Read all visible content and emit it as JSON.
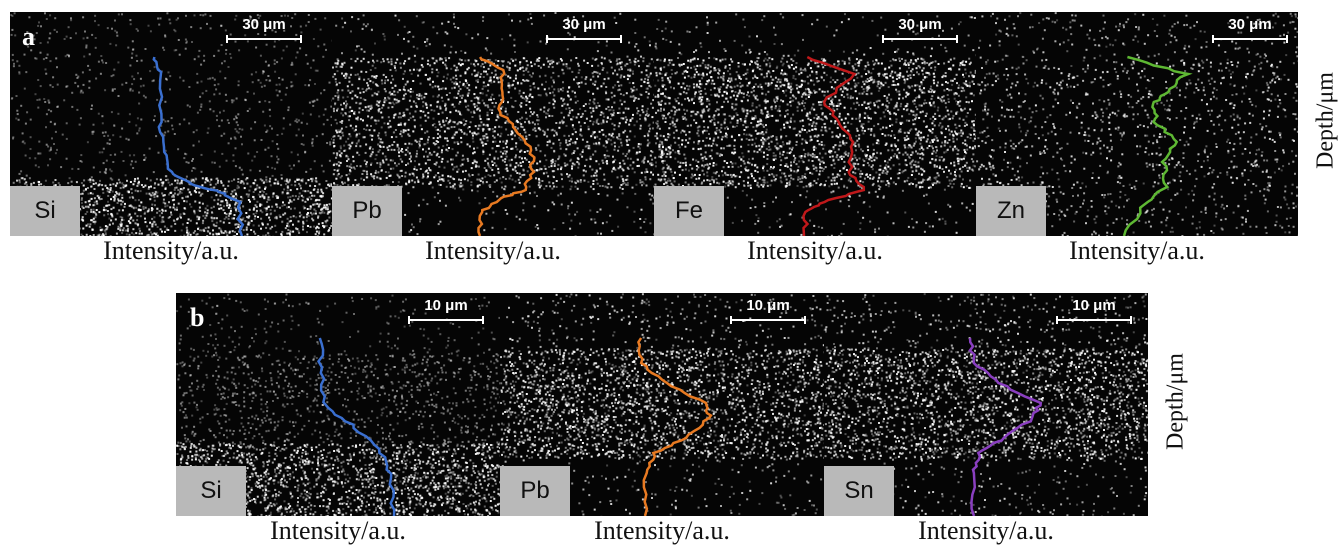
{
  "figure": {
    "row_a": {
      "tag": "a",
      "ylabel": "Depth/μm",
      "panels": [
        {
          "element": "Si",
          "scale": "30 μm",
          "xlabel": "Intensity/a.u.",
          "color": "#3a6fd0"
        },
        {
          "element": "Pb",
          "scale": "30 μm",
          "xlabel": "Intensity/a.u.",
          "color": "#e87a22"
        },
        {
          "element": "Fe",
          "scale": "30 μm",
          "xlabel": "Intensity/a.u.",
          "color": "#c0181a"
        },
        {
          "element": "Zn",
          "scale": "30 μm",
          "xlabel": "Intensity/a.u.",
          "color": "#5eb833"
        }
      ]
    },
    "row_b": {
      "tag": "b",
      "ylabel": "Depth/μm",
      "panels": [
        {
          "element": "Si",
          "scale": "10 μm",
          "xlabel": "Intensity/a.u.",
          "color": "#3a6fd0"
        },
        {
          "element": "Pb",
          "scale": "10 μm",
          "xlabel": "Intensity/a.u.",
          "color": "#e87a22"
        },
        {
          "element": "Sn",
          "scale": "10 μm",
          "xlabel": "Intensity/a.u.",
          "color": "#8a3fc0"
        }
      ]
    }
  }
}
